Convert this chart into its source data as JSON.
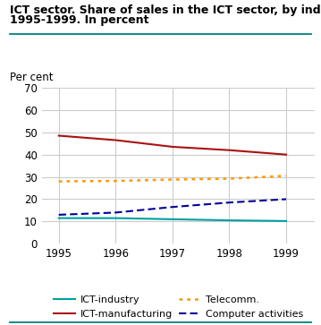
{
  "title_line1": "ICT sector. Share of sales in the ICT sector, by industry.",
  "title_line2": "1995-1999. In percent",
  "ylabel": "Per cent",
  "years": [
    1995,
    1996,
    1997,
    1998,
    1999
  ],
  "series": {
    "ICT-industry": {
      "values": [
        11.5,
        11.5,
        11.0,
        10.5,
        10.2
      ],
      "color": "#00a0a0",
      "linestyle": "solid",
      "linewidth": 1.5
    },
    "ICT-manufacturing": {
      "values": [
        48.5,
        46.5,
        43.5,
        42.0,
        40.0
      ],
      "color": "#aa1111",
      "linestyle": "solid",
      "linewidth": 1.5
    },
    "Telecomm.": {
      "values": [
        28.0,
        28.2,
        28.8,
        29.2,
        30.5
      ],
      "color": "#ff9900",
      "linestyle": "dotted",
      "linewidth": 1.8
    },
    "Computer activities": {
      "values": [
        13.0,
        14.0,
        16.5,
        18.5,
        20.0
      ],
      "color": "#000099",
      "linestyle": "dashed",
      "linewidth": 1.5
    }
  },
  "ylim": [
    0,
    70
  ],
  "yticks": [
    0,
    10,
    20,
    30,
    40,
    50,
    60,
    70
  ],
  "xlim": [
    1994.7,
    1999.5
  ],
  "title_color": "#000000",
  "title_fontsize": 9.0,
  "ylabel_fontsize": 8.5,
  "tick_fontsize": 8.5,
  "legend_fontsize": 8.0,
  "grid_color": "#cccccc",
  "bg_color": "#ffffff",
  "accent_color": "#008080"
}
